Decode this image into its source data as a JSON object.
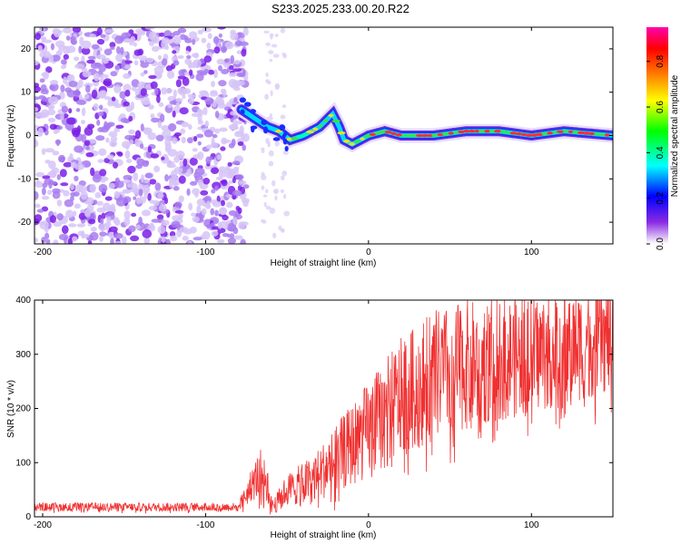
{
  "title": "S233.2025.233.00.20.R22",
  "chart_data": [
    {
      "type": "heatmap",
      "xlabel": "Height of straight line (km)",
      "ylabel": "Frequency (Hz)",
      "xlim": [
        -205,
        150
      ],
      "ylim": [
        -25,
        25
      ],
      "xticks": [
        -200,
        -100,
        0,
        100
      ],
      "yticks": [
        -20,
        -10,
        0,
        10,
        20
      ],
      "colorbar": {
        "label": "Normalized spectral amplitude",
        "range": [
          0,
          0.95
        ],
        "ticks": [
          0.0,
          0.2,
          0.4,
          0.6,
          0.8
        ],
        "colors": [
          "#ffffff",
          "#8a2be2",
          "#0000ff",
          "#00ffff",
          "#00ff00",
          "#ffff00",
          "#ff8000",
          "#ff0000",
          "#ff00aa"
        ]
      },
      "noise_region_end_km": -75,
      "ridge": {
        "x": [
          -78,
          -70,
          -62,
          -55,
          -48,
          -40,
          -30,
          -22,
          -18,
          -15,
          -10,
          -5,
          0,
          10,
          20,
          40,
          60,
          80,
          100,
          120,
          150
        ],
        "y": [
          6,
          4,
          2,
          1,
          -1,
          0,
          2,
          5,
          2,
          -1,
          -2,
          -1,
          0,
          1,
          0,
          0,
          1,
          1,
          0,
          1,
          0
        ]
      }
    },
    {
      "type": "line",
      "xlabel": "Height of straight line (km)",
      "ylabel": "SNR (10 * v/v)",
      "xlim": [
        -205,
        150
      ],
      "ylim": [
        0,
        400
      ],
      "xticks": [
        -200,
        -100,
        0,
        100
      ],
      "yticks": [
        0,
        100,
        200,
        300,
        400
      ],
      "color": "#f03030",
      "envelope": {
        "x": [
          -205,
          -80,
          -65,
          -58,
          -50,
          -40,
          -30,
          -15,
          0,
          20,
          40,
          60,
          80,
          100,
          120,
          150
        ],
        "mean": [
          18,
          18,
          90,
          20,
          50,
          60,
          80,
          120,
          160,
          220,
          260,
          280,
          290,
          300,
          310,
          330
        ],
        "spread": [
          8,
          8,
          50,
          15,
          30,
          40,
          50,
          70,
          90,
          110,
          120,
          120,
          115,
          110,
          105,
          100
        ]
      }
    }
  ]
}
